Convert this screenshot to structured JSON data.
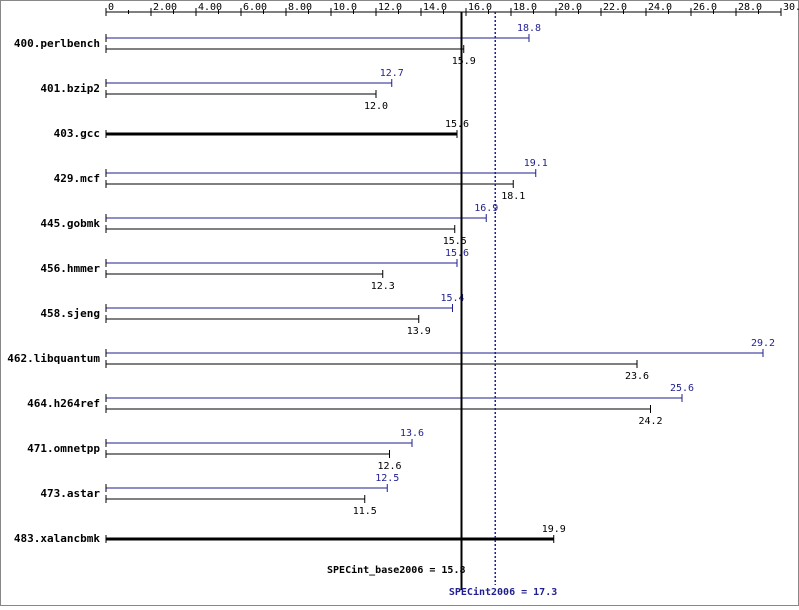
{
  "chart_data": {
    "type": "bar",
    "categories": [
      "400.perlbench",
      "401.bzip2",
      "403.gcc",
      "429.mcf",
      "445.gobmk",
      "456.hmmer",
      "458.sjeng",
      "462.libquantum",
      "464.h264ref",
      "471.omnetpp",
      "473.astar",
      "483.xalancbmk"
    ],
    "series": [
      {
        "name": "peak",
        "color": "#1f1f8f",
        "values": [
          18.8,
          12.7,
          null,
          19.1,
          16.9,
          15.6,
          15.4,
          29.2,
          25.6,
          13.6,
          12.5,
          null
        ]
      },
      {
        "name": "base",
        "color": "#000000",
        "values": [
          15.9,
          12.0,
          15.6,
          18.1,
          15.5,
          12.3,
          13.9,
          23.6,
          24.2,
          12.6,
          11.5,
          19.9
        ],
        "value_labels": [
          "15.9",
          "12.0",
          "15.6",
          "18.1",
          "15.5",
          "12.3",
          "13.9",
          "23.6",
          "24.2",
          "12.6",
          "11.5",
          "19.9"
        ]
      }
    ],
    "xlim": [
      0,
      30
    ],
    "xticks": [
      0,
      {
        "value": 2,
        "label": "2.00"
      },
      {
        "value": 4,
        "label": "4.00"
      },
      {
        "value": 6,
        "label": "6.00"
      },
      {
        "value": 8,
        "label": "8.00"
      },
      {
        "value": 10,
        "label": "10.0"
      },
      {
        "value": 12,
        "label": "12.0"
      },
      {
        "value": 14,
        "label": "14.0"
      },
      {
        "value": 16,
        "label": "16.0"
      },
      {
        "value": 18,
        "label": "18.0"
      },
      {
        "value": 20,
        "label": "20.0"
      },
      {
        "value": 22,
        "label": "22.0"
      },
      {
        "value": 24,
        "label": "24.0"
      },
      {
        "value": 26,
        "label": "26.0"
      },
      {
        "value": 28,
        "label": "28.0"
      },
      {
        "value": 30,
        "label": "30.0"
      }
    ],
    "reference_lines": [
      {
        "label": "SPECint_base2006 = 15.8",
        "value": 15.8,
        "color": "#000000",
        "style": "solid"
      },
      {
        "label": "SPECint2006 = 17.3",
        "value": 17.3,
        "color": "#1f1f8f",
        "style": "dotted"
      }
    ]
  }
}
